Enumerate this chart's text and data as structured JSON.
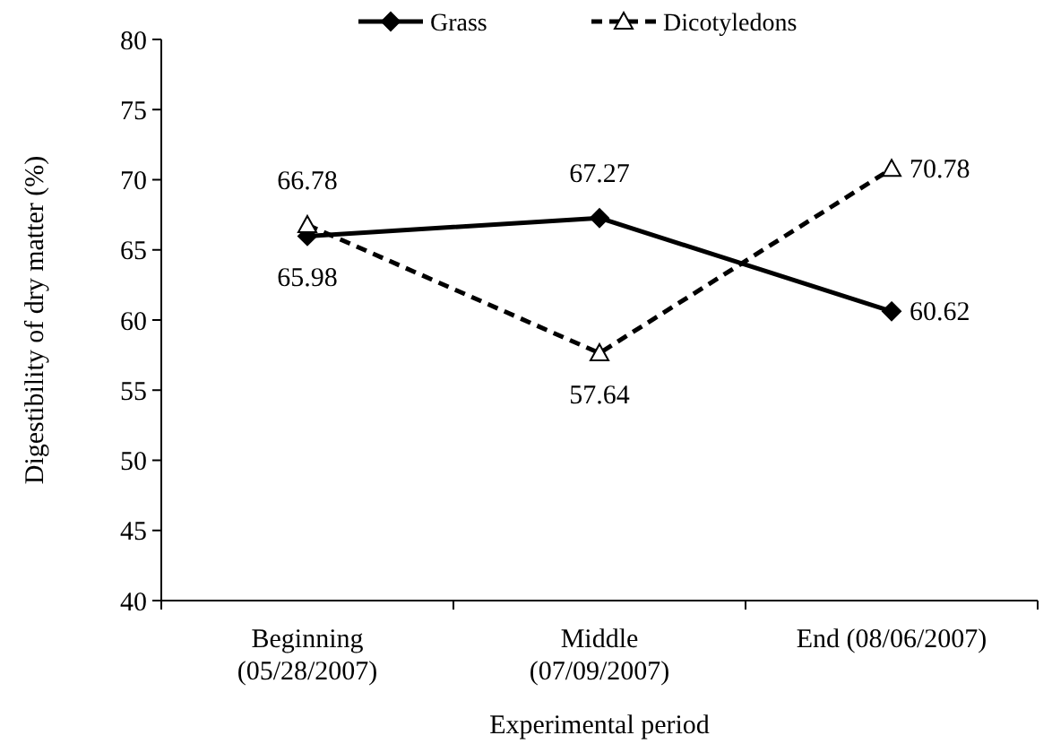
{
  "chart_data": {
    "type": "line",
    "xlabel": "Experimental period",
    "ylabel": "Digestibility of dry matter (%)",
    "categories": [
      "Beginning\n(05/28/2007)",
      "Middle\n(07/09/2007)",
      "End (08/06/2007)"
    ],
    "series": [
      {
        "name": "Grass",
        "color": "#000000",
        "values": [
          65.98,
          67.27,
          60.62
        ],
        "marker": "diamond",
        "line_style": "solid"
      },
      {
        "name": "Dicotyledons",
        "color": "#000000",
        "values": [
          66.78,
          57.64,
          70.78
        ],
        "marker": "triangle",
        "line_style": "dashed"
      }
    ],
    "ylim": [
      40,
      80
    ],
    "yticks": [
      40,
      45,
      50,
      55,
      60,
      65,
      70,
      75,
      80
    ],
    "data_labels": true,
    "legend": "top",
    "grid": false
  }
}
